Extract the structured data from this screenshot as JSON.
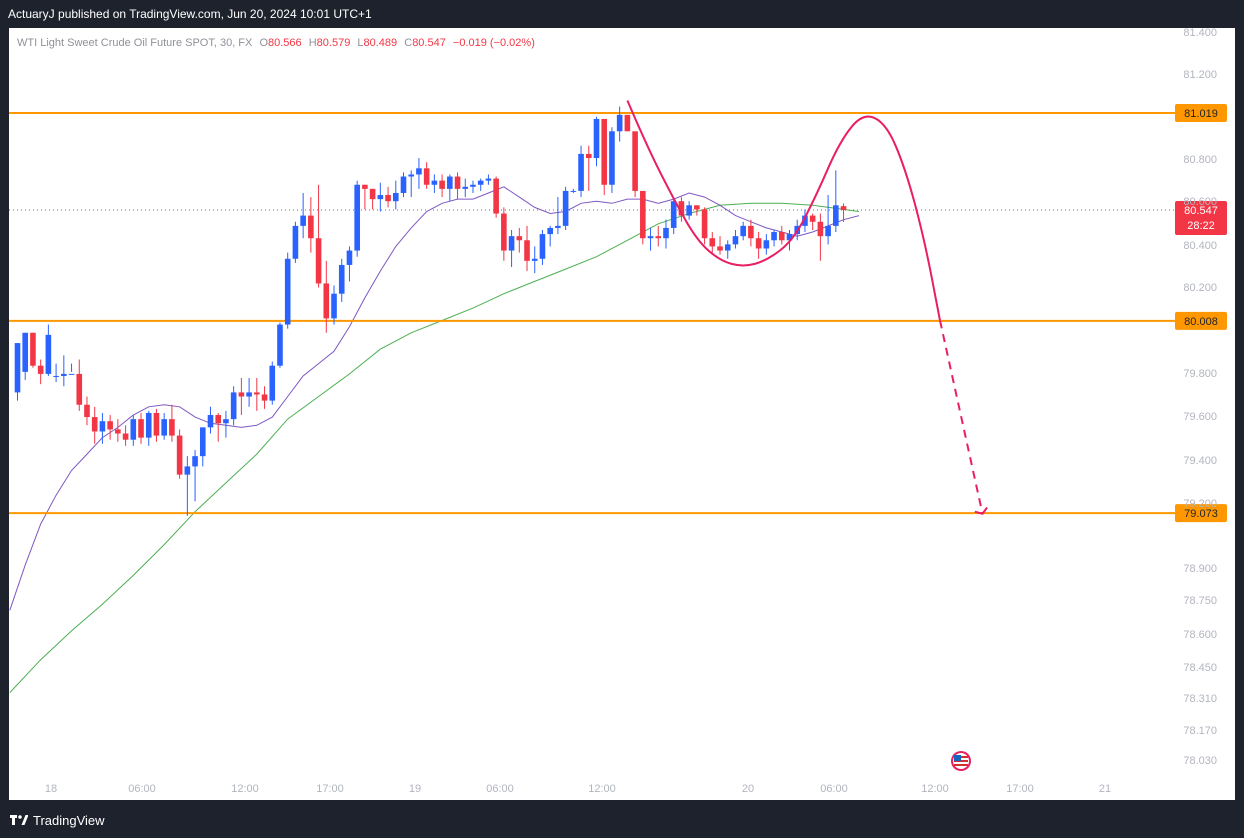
{
  "header": {
    "publisher_line": "ActuaryJ published on TradingView.com, Jun 20, 2024 10:01 UTC+1"
  },
  "footer": {
    "brand": "TradingView",
    "brand_icon": "tradingview-logo-icon"
  },
  "legend": {
    "symbol": "WTI Light Sweet Crude Oil Future SPOT, 30, FX",
    "o_label": "O",
    "o_value": "80.566",
    "h_label": "H",
    "h_value": "80.579",
    "l_label": "L",
    "l_value": "80.489",
    "c_label": "C",
    "c_value": "80.547",
    "change": "−0.019 (−0.02%)"
  },
  "colors": {
    "up": "#2962ff",
    "down": "#f23645",
    "level": "#ff9800",
    "ma_fast": "#7e57c2",
    "ma_slow": "#4caf50",
    "projection": "#e91e63",
    "axis_text": "#b2b5be",
    "frame_bg": "#1e222d",
    "chart_bg": "#ffffff"
  },
  "chart_data": {
    "type": "candlestick",
    "timeframe": "30",
    "ylim": [
      78.0,
      81.45
    ],
    "yticks": [
      "81.400",
      "81.200",
      "80.800",
      "80.600",
      "80.400",
      "80.200",
      "79.800",
      "79.600",
      "79.400",
      "79.200",
      "78.900",
      "78.750",
      "78.600",
      "78.450",
      "78.310",
      "78.170",
      "78.030"
    ],
    "xticks": [
      "18",
      "06:00",
      "12:00",
      "17:00",
      "19",
      "06:00",
      "12:00",
      "20",
      "06:00",
      "12:00",
      "17:00",
      "21"
    ],
    "levels": [
      {
        "value": 81.019,
        "label": "81.019"
      },
      {
        "value": 80.008,
        "label": "80.008"
      },
      {
        "value": 79.073,
        "label": "79.073"
      }
    ],
    "last_price": {
      "value": 80.547,
      "label": "80.547",
      "countdown": "28:22"
    },
    "candles": [
      {
        "o": 79.66,
        "h": 79.9,
        "l": 79.62,
        "c": 79.9
      },
      {
        "o": 79.76,
        "h": 79.95,
        "l": 79.72,
        "c": 79.95
      },
      {
        "o": 79.95,
        "h": 79.95,
        "l": 79.78,
        "c": 79.79
      },
      {
        "o": 79.79,
        "h": 79.82,
        "l": 79.7,
        "c": 79.75
      },
      {
        "o": 79.75,
        "h": 79.99,
        "l": 79.74,
        "c": 79.94
      },
      {
        "o": 79.74,
        "h": 79.8,
        "l": 79.71,
        "c": 79.74
      },
      {
        "o": 79.74,
        "h": 79.84,
        "l": 79.69,
        "c": 79.75
      },
      {
        "o": 79.75,
        "h": 79.8,
        "l": 79.76,
        "c": 79.75
      },
      {
        "o": 79.75,
        "h": 79.82,
        "l": 79.57,
        "c": 79.6
      },
      {
        "o": 79.6,
        "h": 79.64,
        "l": 79.5,
        "c": 79.54
      },
      {
        "o": 79.54,
        "h": 79.59,
        "l": 79.41,
        "c": 79.47
      },
      {
        "o": 79.47,
        "h": 79.56,
        "l": 79.41,
        "c": 79.52
      },
      {
        "o": 79.52,
        "h": 79.55,
        "l": 79.43,
        "c": 79.48
      },
      {
        "o": 79.48,
        "h": 79.53,
        "l": 79.42,
        "c": 79.46
      },
      {
        "o": 79.46,
        "h": 79.5,
        "l": 79.4,
        "c": 79.43
      },
      {
        "o": 79.43,
        "h": 79.55,
        "l": 79.4,
        "c": 79.53
      },
      {
        "o": 79.53,
        "h": 79.56,
        "l": 79.41,
        "c": 79.44
      },
      {
        "o": 79.44,
        "h": 79.57,
        "l": 79.4,
        "c": 79.56
      },
      {
        "o": 79.56,
        "h": 79.58,
        "l": 79.42,
        "c": 79.45
      },
      {
        "o": 79.45,
        "h": 79.56,
        "l": 79.43,
        "c": 79.53
      },
      {
        "o": 79.53,
        "h": 79.6,
        "l": 79.42,
        "c": 79.45
      },
      {
        "o": 79.45,
        "h": 79.48,
        "l": 79.24,
        "c": 79.26
      },
      {
        "o": 79.26,
        "h": 79.35,
        "l": 79.06,
        "c": 79.3
      },
      {
        "o": 79.3,
        "h": 79.38,
        "l": 79.13,
        "c": 79.35
      },
      {
        "o": 79.35,
        "h": 79.49,
        "l": 79.3,
        "c": 79.49
      },
      {
        "o": 79.49,
        "h": 79.59,
        "l": 79.46,
        "c": 79.55
      },
      {
        "o": 79.55,
        "h": 79.56,
        "l": 79.42,
        "c": 79.51
      },
      {
        "o": 79.51,
        "h": 79.57,
        "l": 79.44,
        "c": 79.53
      },
      {
        "o": 79.53,
        "h": 79.69,
        "l": 79.5,
        "c": 79.66
      },
      {
        "o": 79.66,
        "h": 79.73,
        "l": 79.55,
        "c": 79.64
      },
      {
        "o": 79.64,
        "h": 79.73,
        "l": 79.59,
        "c": 79.66
      },
      {
        "o": 79.66,
        "h": 79.73,
        "l": 79.57,
        "c": 79.65
      },
      {
        "o": 79.65,
        "h": 79.69,
        "l": 79.58,
        "c": 79.62
      },
      {
        "o": 79.62,
        "h": 79.81,
        "l": 79.6,
        "c": 79.79
      },
      {
        "o": 79.79,
        "h": 80.0,
        "l": 79.78,
        "c": 79.99
      },
      {
        "o": 79.99,
        "h": 80.34,
        "l": 79.97,
        "c": 80.31
      },
      {
        "o": 80.31,
        "h": 80.49,
        "l": 80.29,
        "c": 80.47
      },
      {
        "o": 80.47,
        "h": 80.63,
        "l": 80.41,
        "c": 80.52
      },
      {
        "o": 80.52,
        "h": 80.61,
        "l": 80.34,
        "c": 80.41
      },
      {
        "o": 80.41,
        "h": 80.67,
        "l": 80.17,
        "c": 80.19
      },
      {
        "o": 80.19,
        "h": 80.3,
        "l": 79.95,
        "c": 80.02
      },
      {
        "o": 80.02,
        "h": 80.18,
        "l": 79.99,
        "c": 80.14
      },
      {
        "o": 80.14,
        "h": 80.31,
        "l": 80.1,
        "c": 80.28
      },
      {
        "o": 80.28,
        "h": 80.37,
        "l": 80.2,
        "c": 80.35
      },
      {
        "o": 80.35,
        "h": 80.69,
        "l": 80.32,
        "c": 80.67
      },
      {
        "o": 80.67,
        "h": 80.67,
        "l": 80.55,
        "c": 80.65
      },
      {
        "o": 80.65,
        "h": 80.65,
        "l": 80.55,
        "c": 80.6
      },
      {
        "o": 80.6,
        "h": 80.68,
        "l": 80.54,
        "c": 80.62
      },
      {
        "o": 80.62,
        "h": 80.66,
        "l": 80.56,
        "c": 80.59
      },
      {
        "o": 80.59,
        "h": 80.69,
        "l": 80.55,
        "c": 80.63
      },
      {
        "o": 80.63,
        "h": 80.73,
        "l": 80.61,
        "c": 80.71
      },
      {
        "o": 80.71,
        "h": 80.74,
        "l": 80.61,
        "c": 80.72
      },
      {
        "o": 80.72,
        "h": 80.8,
        "l": 80.65,
        "c": 80.75
      },
      {
        "o": 80.75,
        "h": 80.78,
        "l": 80.65,
        "c": 80.67
      },
      {
        "o": 80.67,
        "h": 80.72,
        "l": 80.63,
        "c": 80.69
      },
      {
        "o": 80.69,
        "h": 80.72,
        "l": 80.61,
        "c": 80.65
      },
      {
        "o": 80.65,
        "h": 80.72,
        "l": 80.59,
        "c": 80.71
      },
      {
        "o": 80.71,
        "h": 80.73,
        "l": 80.6,
        "c": 80.65
      },
      {
        "o": 80.65,
        "h": 80.7,
        "l": 80.61,
        "c": 80.66
      },
      {
        "o": 80.66,
        "h": 80.69,
        "l": 80.63,
        "c": 80.67
      },
      {
        "o": 80.67,
        "h": 80.7,
        "l": 80.64,
        "c": 80.69
      },
      {
        "o": 80.69,
        "h": 80.72,
        "l": 80.67,
        "c": 80.7
      },
      {
        "o": 80.7,
        "h": 80.71,
        "l": 80.51,
        "c": 80.53
      },
      {
        "o": 80.53,
        "h": 80.56,
        "l": 80.3,
        "c": 80.35
      },
      {
        "o": 80.35,
        "h": 80.45,
        "l": 80.27,
        "c": 80.42
      },
      {
        "o": 80.42,
        "h": 80.46,
        "l": 80.34,
        "c": 80.4
      },
      {
        "o": 80.4,
        "h": 80.47,
        "l": 80.25,
        "c": 80.3
      },
      {
        "o": 80.3,
        "h": 80.37,
        "l": 80.24,
        "c": 80.31
      },
      {
        "o": 80.31,
        "h": 80.45,
        "l": 80.28,
        "c": 80.43
      },
      {
        "o": 80.43,
        "h": 80.47,
        "l": 80.37,
        "c": 80.46
      },
      {
        "o": 80.46,
        "h": 80.61,
        "l": 80.43,
        "c": 80.47
      },
      {
        "o": 80.47,
        "h": 80.66,
        "l": 80.45,
        "c": 80.64
      },
      {
        "o": 80.64,
        "h": 80.65,
        "l": 80.63,
        "c": 80.64
      },
      {
        "o": 80.64,
        "h": 80.86,
        "l": 80.61,
        "c": 80.82
      },
      {
        "o": 80.82,
        "h": 80.86,
        "l": 80.64,
        "c": 80.8
      },
      {
        "o": 80.8,
        "h": 81.0,
        "l": 80.76,
        "c": 80.99
      },
      {
        "o": 80.99,
        "h": 80.99,
        "l": 80.62,
        "c": 80.67
      },
      {
        "o": 80.67,
        "h": 80.95,
        "l": 80.63,
        "c": 80.93
      },
      {
        "o": 80.93,
        "h": 81.05,
        "l": 80.88,
        "c": 81.01
      },
      {
        "o": 81.01,
        "h": 81.0,
        "l": 80.93,
        "c": 80.93
      },
      {
        "o": 80.93,
        "h": 80.92,
        "l": 80.61,
        "c": 80.64
      },
      {
        "o": 80.64,
        "h": 80.64,
        "l": 80.38,
        "c": 80.41
      },
      {
        "o": 80.41,
        "h": 80.46,
        "l": 80.35,
        "c": 80.42
      },
      {
        "o": 80.42,
        "h": 80.47,
        "l": 80.37,
        "c": 80.41
      },
      {
        "o": 80.41,
        "h": 80.5,
        "l": 80.36,
        "c": 80.46
      },
      {
        "o": 80.46,
        "h": 80.6,
        "l": 80.43,
        "c": 80.59
      },
      {
        "o": 80.59,
        "h": 80.61,
        "l": 80.49,
        "c": 80.52
      },
      {
        "o": 80.52,
        "h": 80.59,
        "l": 80.5,
        "c": 80.57
      },
      {
        "o": 80.57,
        "h": 80.57,
        "l": 80.52,
        "c": 80.55
      },
      {
        "o": 80.55,
        "h": 80.56,
        "l": 80.38,
        "c": 80.41
      },
      {
        "o": 80.41,
        "h": 80.44,
        "l": 80.34,
        "c": 80.37
      },
      {
        "o": 80.37,
        "h": 80.42,
        "l": 80.33,
        "c": 80.35
      },
      {
        "o": 80.35,
        "h": 80.4,
        "l": 80.31,
        "c": 80.38
      },
      {
        "o": 80.38,
        "h": 80.45,
        "l": 80.36,
        "c": 80.42
      },
      {
        "o": 80.42,
        "h": 80.49,
        "l": 80.4,
        "c": 80.47
      },
      {
        "o": 80.47,
        "h": 80.5,
        "l": 80.37,
        "c": 80.41
      },
      {
        "o": 80.41,
        "h": 80.44,
        "l": 80.31,
        "c": 80.36
      },
      {
        "o": 80.36,
        "h": 80.43,
        "l": 80.33,
        "c": 80.4
      },
      {
        "o": 80.4,
        "h": 80.45,
        "l": 80.37,
        "c": 80.44
      },
      {
        "o": 80.44,
        "h": 80.47,
        "l": 80.38,
        "c": 80.4
      },
      {
        "o": 80.4,
        "h": 80.45,
        "l": 80.35,
        "c": 80.43
      },
      {
        "o": 80.43,
        "h": 80.5,
        "l": 80.4,
        "c": 80.47
      },
      {
        "o": 80.47,
        "h": 80.55,
        "l": 80.44,
        "c": 80.52
      },
      {
        "o": 80.52,
        "h": 80.53,
        "l": 80.45,
        "c": 80.49
      },
      {
        "o": 80.49,
        "h": 80.53,
        "l": 80.3,
        "c": 80.42
      },
      {
        "o": 80.42,
        "h": 80.62,
        "l": 80.38,
        "c": 80.47
      },
      {
        "o": 80.47,
        "h": 80.74,
        "l": 80.44,
        "c": 80.57
      },
      {
        "o": 80.566,
        "h": 80.579,
        "l": 80.489,
        "c": 80.547
      }
    ],
    "ma_fast": [
      {
        "i": -1,
        "v": 78.6
      },
      {
        "i": 1,
        "v": 78.82
      },
      {
        "i": 3,
        "v": 79.02
      },
      {
        "i": 5,
        "v": 79.16
      },
      {
        "i": 7,
        "v": 79.28
      },
      {
        "i": 9,
        "v": 79.36
      },
      {
        "i": 11,
        "v": 79.44
      },
      {
        "i": 13,
        "v": 79.49
      },
      {
        "i": 15,
        "v": 79.55
      },
      {
        "i": 17,
        "v": 79.59
      },
      {
        "i": 19,
        "v": 79.6
      },
      {
        "i": 21,
        "v": 79.59
      },
      {
        "i": 23,
        "v": 79.54
      },
      {
        "i": 25,
        "v": 79.51
      },
      {
        "i": 27,
        "v": 79.5
      },
      {
        "i": 29,
        "v": 79.49
      },
      {
        "i": 31,
        "v": 79.5
      },
      {
        "i": 33,
        "v": 79.54
      },
      {
        "i": 35,
        "v": 79.64
      },
      {
        "i": 37,
        "v": 79.74
      },
      {
        "i": 39,
        "v": 79.8
      },
      {
        "i": 41,
        "v": 79.86
      },
      {
        "i": 43,
        "v": 79.98
      },
      {
        "i": 45,
        "v": 80.12
      },
      {
        "i": 47,
        "v": 80.25
      },
      {
        "i": 49,
        "v": 80.37
      },
      {
        "i": 51,
        "v": 80.46
      },
      {
        "i": 53,
        "v": 80.54
      },
      {
        "i": 55,
        "v": 80.58
      },
      {
        "i": 57,
        "v": 80.6
      },
      {
        "i": 59,
        "v": 80.6
      },
      {
        "i": 61,
        "v": 80.63
      },
      {
        "i": 63,
        "v": 80.66
      },
      {
        "i": 65,
        "v": 80.61
      },
      {
        "i": 67,
        "v": 80.56
      },
      {
        "i": 69,
        "v": 80.53
      },
      {
        "i": 71,
        "v": 80.54
      },
      {
        "i": 73,
        "v": 80.58
      },
      {
        "i": 75,
        "v": 80.59
      },
      {
        "i": 77,
        "v": 80.58
      },
      {
        "i": 79,
        "v": 80.6
      },
      {
        "i": 81,
        "v": 80.6
      },
      {
        "i": 83,
        "v": 80.58
      },
      {
        "i": 85,
        "v": 80.6
      },
      {
        "i": 87,
        "v": 80.63
      },
      {
        "i": 89,
        "v": 80.61
      },
      {
        "i": 91,
        "v": 80.57
      },
      {
        "i": 93,
        "v": 80.52
      },
      {
        "i": 95,
        "v": 80.49
      },
      {
        "i": 97,
        "v": 80.46
      },
      {
        "i": 99,
        "v": 80.44
      },
      {
        "i": 101,
        "v": 80.42
      },
      {
        "i": 103,
        "v": 80.44
      },
      {
        "i": 105,
        "v": 80.47
      },
      {
        "i": 107,
        "v": 80.5
      },
      {
        "i": 109,
        "v": 80.52
      }
    ],
    "ma_slow": [
      {
        "i": -1,
        "v": 78.2
      },
      {
        "i": 3,
        "v": 78.36
      },
      {
        "i": 7,
        "v": 78.5
      },
      {
        "i": 11,
        "v": 78.63
      },
      {
        "i": 15,
        "v": 78.77
      },
      {
        "i": 19,
        "v": 78.92
      },
      {
        "i": 23,
        "v": 79.08
      },
      {
        "i": 27,
        "v": 79.22
      },
      {
        "i": 31,
        "v": 79.36
      },
      {
        "i": 35,
        "v": 79.53
      },
      {
        "i": 39,
        "v": 79.64
      },
      {
        "i": 43,
        "v": 79.75
      },
      {
        "i": 47,
        "v": 79.87
      },
      {
        "i": 51,
        "v": 79.95
      },
      {
        "i": 55,
        "v": 80.01
      },
      {
        "i": 59,
        "v": 80.07
      },
      {
        "i": 63,
        "v": 80.14
      },
      {
        "i": 67,
        "v": 80.2
      },
      {
        "i": 71,
        "v": 80.26
      },
      {
        "i": 75,
        "v": 80.32
      },
      {
        "i": 79,
        "v": 80.4
      },
      {
        "i": 83,
        "v": 80.48
      },
      {
        "i": 87,
        "v": 80.53
      },
      {
        "i": 91,
        "v": 80.57
      },
      {
        "i": 95,
        "v": 80.58
      },
      {
        "i": 99,
        "v": 80.58
      },
      {
        "i": 103,
        "v": 80.57
      },
      {
        "i": 107,
        "v": 80.55
      },
      {
        "i": 109,
        "v": 80.54
      }
    ],
    "projection_solid": [
      {
        "i": 79.0,
        "v": 81.08
      },
      {
        "i": 81.5,
        "v": 80.86
      },
      {
        "i": 85.0,
        "v": 80.6
      },
      {
        "i": 88.0,
        "v": 80.4
      },
      {
        "i": 91.0,
        "v": 80.3
      },
      {
        "i": 94.0,
        "v": 80.27
      },
      {
        "i": 97.0,
        "v": 80.3
      },
      {
        "i": 100.5,
        "v": 80.4
      },
      {
        "i": 103.5,
        "v": 80.62
      },
      {
        "i": 106.5,
        "v": 80.88
      },
      {
        "i": 109.5,
        "v": 81.02
      },
      {
        "i": 112.5,
        "v": 80.97
      },
      {
        "i": 115.0,
        "v": 80.75
      },
      {
        "i": 117.5,
        "v": 80.4
      },
      {
        "i": 119.5,
        "v": 80.01
      }
    ],
    "projection_dashed": [
      {
        "i": 119.5,
        "v": 80.01
      },
      {
        "i": 125.0,
        "v": 79.07
      }
    ],
    "projection_arrowhead": [
      {
        "i": 124.0,
        "v": 79.08
      },
      {
        "i": 125.0,
        "v": 79.07
      },
      {
        "i": 125.6,
        "v": 79.1
      }
    ]
  }
}
